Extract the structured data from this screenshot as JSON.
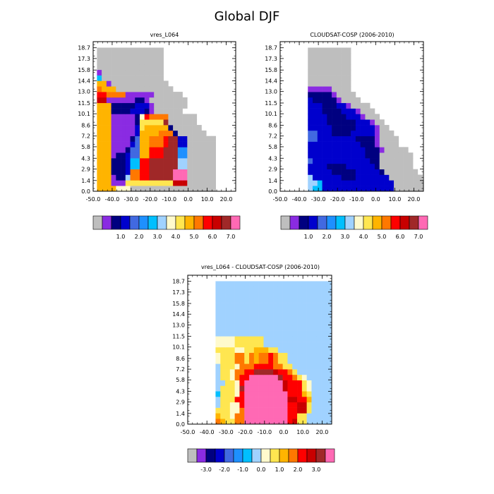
{
  "figure": {
    "title": "Global DJF"
  },
  "chart_data": [
    {
      "type": "heatmap",
      "title": "vres_L064",
      "xticks": [
        "-50.0",
        "-40.0",
        "-30.0",
        "-20.0",
        "-10.0",
        "0.0",
        "10.0",
        "20.0"
      ],
      "yticks": [
        "0.0",
        "1.4",
        "2.9",
        "4.3",
        "5.8",
        "7.2",
        "8.6",
        "10.1",
        "11.5",
        "13.0",
        "14.4",
        "15.8",
        "17.3",
        "18.7"
      ],
      "xlim": [
        -50,
        25
      ],
      "ylim": [
        0,
        19.5
      ],
      "colorbar": {
        "colors": [
          "#bebebe",
          "#8a2be2",
          "#000080",
          "#0000cd",
          "#4169e1",
          "#1e90ff",
          "#00bfff",
          "#a0d2ff",
          "#fffacd",
          "#ffe650",
          "#ffb400",
          "#ff7800",
          "#ff0000",
          "#c80000",
          "#a02828",
          "#ff69b4"
        ],
        "labels": [
          "1.0",
          "2.0",
          "3.0",
          "4.0",
          "5.0",
          "6.0",
          "7.0"
        ],
        "label_after_box": [
          3,
          5,
          7,
          9,
          11,
          13,
          15
        ]
      },
      "grid": {
        "x0": -48,
        "dx": 2.5,
        "nx": 29,
        "y0": 0,
        "dy": 0.72,
        "ny": 26
      },
      "values": [
        "AAAA888000000000000000000",
        "AAA1119999999999DDD000000",
        "AAA1227BBCCEEEEEFFF000000",
        "AAA2223BBCCEEEEEFFF000000",
        "AAA222366CCEEEEEE77000000",
        "AAA222366CCEEEEEE77000000",
        "AAA122344AACCCEEE55000000",
        "AAA111244AACCCEEE55000000",
        "AAA111134AABBBCEE33000000",
        "AAA111124AABBBCEE33000000",
        "AAA111113AAAABBB2000000",
        "AAA1111139AAAAA2000000",
        "AAA11111299999E000000",
        "AAA1111128CBBBB000000",
        "AAA222233321000000",
        "AAA2222233310000000",
        "DD11111122100000000",
        "CCBBBB111111000000",
        "BAAA000000000000",
        "AA1000000000000",
        "60000000000000",
        "10000000000000",
        "00000000000000",
        "00000000000000",
        "00000000000000",
        "00000000000000"
      ]
    },
    {
      "type": "heatmap",
      "title": "CLOUDSAT-COSP (2006-2010)",
      "xticks": [
        "-50.0",
        "-40.0",
        "-30.0",
        "-20.0",
        "-10.0",
        "0.0",
        "10.0",
        "20.0"
      ],
      "yticks": [
        "0.0",
        "1.4",
        "2.9",
        "4.3",
        "5.8",
        "7.2",
        "8.6",
        "10.1",
        "11.5",
        "13.0",
        "14.4",
        "15.8",
        "17.3",
        "18.7"
      ],
      "xlim": [
        -50,
        25
      ],
      "ylim": [
        0,
        19.5
      ],
      "colorbar": {
        "colors": [
          "#bebebe",
          "#8a2be2",
          "#000080",
          "#0000cd",
          "#4169e1",
          "#1e90ff",
          "#00bfff",
          "#a0d2ff",
          "#fffacd",
          "#ffe650",
          "#ffb400",
          "#ff7800",
          "#ff0000",
          "#c80000",
          "#a02828",
          "#ff69b4"
        ],
        "labels": [
          "1.0",
          "2.0",
          "3.0",
          "4.0",
          "5.0",
          "6.0",
          "7.0"
        ],
        "label_after_box": [
          3,
          5,
          7,
          9,
          11,
          13,
          15
        ]
      },
      "grid": {
        "x0": -35.5,
        "dx": 2.5,
        "nx": 25,
        "y0": 0,
        "dy": 0.72,
        "ny": 26
      },
      "values": [
        "76633333333333333300000000",
        "7763333333333333330000000",
        "733333322233333330000000",
        "33333222223333320000000",
        "3333222233333320000000",
        "4333333333333220000000",
        "3333333333332220000000",
        "333333333333222100000",
        "3333333333322210000",
        "4433333333222210000",
        "443332222333331000",
        "33333222223333100",
        "3333222222333100",
        "333322223331000",
        "33322223331000",
        "3332223310000",
        "32222210000",
        "2222210000",
        "111110000",
        "000000000",
        "000000000",
        "000000000",
        "000000000",
        "000000000",
        "000000000",
        "000000000"
      ]
    },
    {
      "type": "heatmap",
      "title": "vres_L064 - CLOUDSAT-COSP (2006-2010)",
      "xticks": [
        "-50.0",
        "-40.0",
        "-30.0",
        "-20.0",
        "-10.0",
        "0.0",
        "10.0",
        "20.0"
      ],
      "yticks": [
        "0.0",
        "1.4",
        "2.9",
        "4.3",
        "5.8",
        "7.2",
        "8.6",
        "10.1",
        "11.5",
        "13.0",
        "14.4",
        "15.8",
        "17.3",
        "18.7"
      ],
      "xlim": [
        -50,
        25
      ],
      "ylim": [
        0,
        19.5
      ],
      "colorbar": {
        "colors": [
          "#bebebe",
          "#8a2be2",
          "#000080",
          "#0000cd",
          "#4169e1",
          "#1e90ff",
          "#00bfff",
          "#a0d2ff",
          "#fffacd",
          "#ffe650",
          "#ffb400",
          "#ff7800",
          "#ff0000",
          "#c80000",
          "#a02828",
          "#ff69b4"
        ],
        "labels": [
          "-3.0",
          "-2.0",
          "-1.0",
          "0.0",
          "1.0",
          "2.0",
          "3.0"
        ],
        "label_after_box": [
          2,
          4,
          6,
          8,
          10,
          12,
          14
        ]
      },
      "grid": {
        "x0": -35.5,
        "dx": 2.5,
        "nx": 25,
        "y0": 0,
        "dy": 0.72,
        "ny": 26
      },
      "values": [
        "BA99BBFFFFFFFFFCD9977777777",
        "A998BBFFFFFFFFFCC9977777777",
        "99988BFFFFFFFFFCCDD97777777",
        "79988CFFFFFFFFFCCDD97777777",
        "7999CCFFFFFFFFFDDCCA7777777",
        "69998CFFFFFFFFFCCCA97777777",
        "79998EFFFFFFFFDCCC987777777",
        "77998CFFFFFFFFDCCC987777777",
        "7998BCCFFFFFFECCB9877777777",
        "7998BBCCEEEEDCCB97777777777",
        "79998BBBCCCCBB9977777777777",
        "8999BB9BABBCB99777777777777",
        "8999BB9BABBCB99777777777777",
        "99998899AAA99777777777777777",
        "88889999997777777777777777",
        "88889999997777777777777777",
        "7777777777777777777777777777",
        "777777777777777777777777777",
        "777777777777777777777777777",
        "777777777777777777777777777",
        "777777777777777777777777777",
        "777777777777777777777777777",
        "777777777777777777777777777",
        "777777777777777777777777777",
        "777777777777777777777777777",
        "777777777777777777777777777"
      ]
    }
  ]
}
